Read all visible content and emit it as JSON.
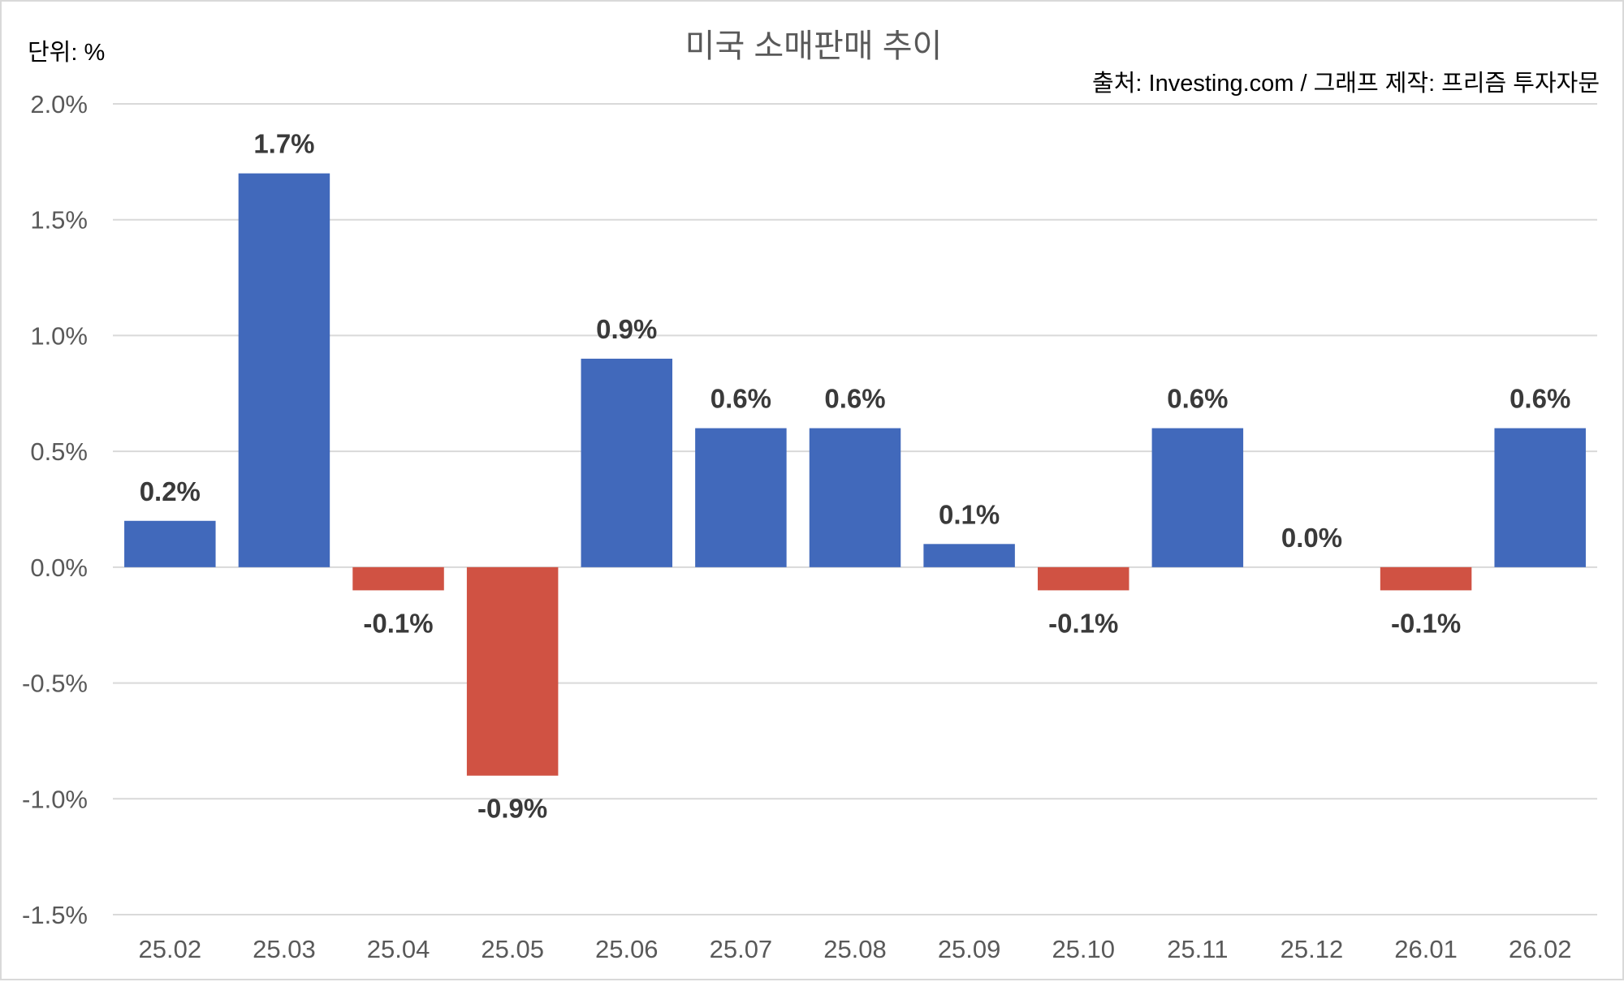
{
  "chart_data": {
    "type": "bar",
    "title": "미국 소매판매 추이",
    "unit_label": "단위: %",
    "source": "출처: Investing.com / 그래프 제작: 프리즘 투자자문",
    "categories": [
      "25.02",
      "25.03",
      "25.04",
      "25.05",
      "25.06",
      "25.07",
      "25.08",
      "25.09",
      "25.10",
      "25.11",
      "25.12",
      "26.01",
      "26.02"
    ],
    "values": [
      0.2,
      1.7,
      -0.1,
      -0.9,
      0.9,
      0.6,
      0.6,
      0.1,
      -0.1,
      0.6,
      0.0,
      -0.1,
      0.6
    ],
    "data_labels": [
      "0.2%",
      "1.7%",
      "-0.1%",
      "-0.9%",
      "0.9%",
      "0.6%",
      "0.6%",
      "0.1%",
      "-0.1%",
      "0.6%",
      "0.0%",
      "-0.1%",
      "0.6%"
    ],
    "y_ticks": [
      2.0,
      1.5,
      1.0,
      0.5,
      0.0,
      -0.5,
      -1.0,
      -1.5
    ],
    "y_tick_labels": [
      "2.0%",
      "1.5%",
      "1.0%",
      "0.5%",
      "0.0%",
      "-0.5%",
      "-1.0%",
      "-1.5%"
    ],
    "ylim": [
      -1.5,
      2.0
    ],
    "grid": true,
    "colors": {
      "positive": "#4169bb",
      "negative": "#d05243"
    }
  }
}
